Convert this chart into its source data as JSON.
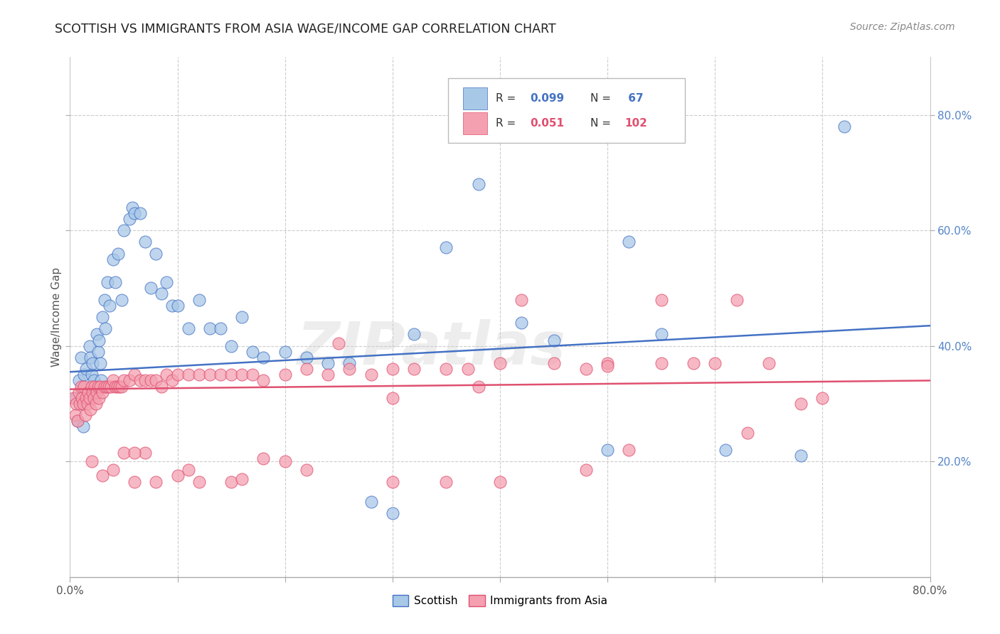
{
  "title": "SCOTTISH VS IMMIGRANTS FROM ASIA WAGE/INCOME GAP CORRELATION CHART",
  "source": "Source: ZipAtlas.com",
  "ylabel": "Wage/Income Gap",
  "xlim": [
    0.0,
    0.8
  ],
  "ylim": [
    0.0,
    0.9
  ],
  "color_scottish": "#a8c8e8",
  "color_asia": "#f4a0b0",
  "color_line_scottish": "#4472c4",
  "color_line_asia": "#e05070",
  "color_tick_right": "#5585c8",
  "background_color": "#ffffff",
  "grid_color": "#cccccc",
  "scot_line_start_y": 0.355,
  "scot_line_end_y": 0.435,
  "asia_line_start_y": 0.325,
  "asia_line_end_y": 0.34,
  "scottish_x": [
    0.005,
    0.007,
    0.008,
    0.01,
    0.011,
    0.012,
    0.013,
    0.015,
    0.016,
    0.017,
    0.018,
    0.019,
    0.02,
    0.021,
    0.022,
    0.023,
    0.025,
    0.026,
    0.027,
    0.028,
    0.029,
    0.03,
    0.032,
    0.033,
    0.035,
    0.037,
    0.04,
    0.042,
    0.045,
    0.048,
    0.05,
    0.055,
    0.058,
    0.06,
    0.065,
    0.07,
    0.075,
    0.08,
    0.085,
    0.09,
    0.095,
    0.1,
    0.11,
    0.12,
    0.13,
    0.14,
    0.15,
    0.16,
    0.17,
    0.18,
    0.2,
    0.22,
    0.24,
    0.26,
    0.28,
    0.3,
    0.32,
    0.35,
    0.38,
    0.42,
    0.45,
    0.5,
    0.52,
    0.55,
    0.61,
    0.68,
    0.72
  ],
  "scottish_y": [
    0.31,
    0.27,
    0.34,
    0.38,
    0.3,
    0.26,
    0.35,
    0.36,
    0.32,
    0.31,
    0.4,
    0.38,
    0.35,
    0.37,
    0.34,
    0.32,
    0.42,
    0.39,
    0.41,
    0.37,
    0.34,
    0.45,
    0.48,
    0.43,
    0.51,
    0.47,
    0.55,
    0.51,
    0.56,
    0.48,
    0.6,
    0.62,
    0.64,
    0.63,
    0.63,
    0.58,
    0.5,
    0.56,
    0.49,
    0.51,
    0.47,
    0.47,
    0.43,
    0.48,
    0.43,
    0.43,
    0.4,
    0.45,
    0.39,
    0.38,
    0.39,
    0.38,
    0.37,
    0.37,
    0.13,
    0.11,
    0.42,
    0.57,
    0.68,
    0.44,
    0.41,
    0.22,
    0.58,
    0.42,
    0.22,
    0.21,
    0.78
  ],
  "asia_x": [
    0.003,
    0.005,
    0.006,
    0.007,
    0.008,
    0.009,
    0.01,
    0.011,
    0.012,
    0.013,
    0.014,
    0.015,
    0.016,
    0.017,
    0.018,
    0.019,
    0.02,
    0.021,
    0.022,
    0.023,
    0.024,
    0.025,
    0.026,
    0.027,
    0.028,
    0.03,
    0.032,
    0.034,
    0.036,
    0.038,
    0.04,
    0.042,
    0.044,
    0.046,
    0.048,
    0.05,
    0.055,
    0.06,
    0.065,
    0.07,
    0.075,
    0.08,
    0.085,
    0.09,
    0.095,
    0.1,
    0.11,
    0.12,
    0.13,
    0.14,
    0.15,
    0.16,
    0.17,
    0.18,
    0.2,
    0.22,
    0.24,
    0.26,
    0.28,
    0.3,
    0.32,
    0.35,
    0.37,
    0.4,
    0.42,
    0.45,
    0.48,
    0.5,
    0.52,
    0.55,
    0.58,
    0.6,
    0.63,
    0.65,
    0.68,
    0.7,
    0.55,
    0.38,
    0.3,
    0.2,
    0.15,
    0.1,
    0.07,
    0.05,
    0.03,
    0.48,
    0.35,
    0.25,
    0.18,
    0.12,
    0.08,
    0.06,
    0.04,
    0.62,
    0.5,
    0.4,
    0.3,
    0.22,
    0.16,
    0.11,
    0.06,
    0.02
  ],
  "asia_y": [
    0.31,
    0.28,
    0.3,
    0.27,
    0.32,
    0.3,
    0.33,
    0.31,
    0.3,
    0.33,
    0.28,
    0.31,
    0.3,
    0.32,
    0.31,
    0.29,
    0.33,
    0.32,
    0.31,
    0.33,
    0.3,
    0.32,
    0.33,
    0.31,
    0.33,
    0.32,
    0.33,
    0.33,
    0.33,
    0.33,
    0.34,
    0.33,
    0.33,
    0.33,
    0.33,
    0.34,
    0.34,
    0.35,
    0.34,
    0.34,
    0.34,
    0.34,
    0.33,
    0.35,
    0.34,
    0.35,
    0.35,
    0.35,
    0.35,
    0.35,
    0.35,
    0.35,
    0.35,
    0.34,
    0.35,
    0.36,
    0.35,
    0.36,
    0.35,
    0.36,
    0.36,
    0.36,
    0.36,
    0.37,
    0.48,
    0.37,
    0.36,
    0.37,
    0.22,
    0.37,
    0.37,
    0.37,
    0.25,
    0.37,
    0.3,
    0.31,
    0.48,
    0.33,
    0.31,
    0.2,
    0.165,
    0.175,
    0.215,
    0.215,
    0.175,
    0.185,
    0.165,
    0.405,
    0.205,
    0.165,
    0.165,
    0.215,
    0.185,
    0.48,
    0.365,
    0.165,
    0.165,
    0.185,
    0.17,
    0.185,
    0.165,
    0.2
  ]
}
